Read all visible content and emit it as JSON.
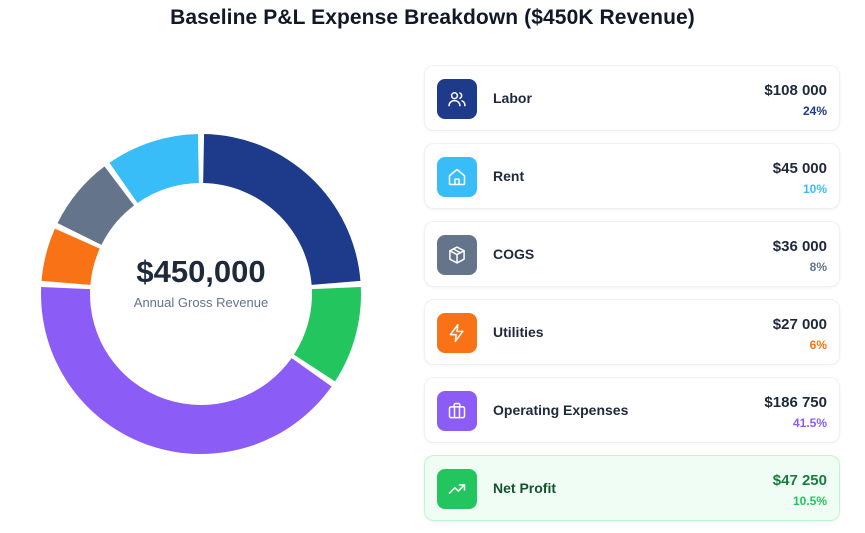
{
  "title": "Baseline P&L Expense Breakdown ($450K Revenue)",
  "center": {
    "value": "$450,000",
    "label": "Annual Gross Revenue"
  },
  "chart_data": {
    "type": "pie",
    "variant": "donut",
    "title": "Baseline P&L Expense Breakdown ($450K Revenue)",
    "total": 450000,
    "categories": [
      "Labor",
      "Net Profit",
      "Operating Expenses",
      "Utilities",
      "COGS",
      "Rent"
    ],
    "values": [
      108000,
      47250,
      186750,
      27000,
      36000,
      45000
    ],
    "percents": [
      24,
      10.5,
      41.5,
      6,
      8,
      10
    ],
    "colors": [
      "#1e3a8a",
      "#22c55e",
      "#8b5cf6",
      "#f97316",
      "#64748b",
      "#38bdf8"
    ]
  },
  "cards": [
    {
      "label": "Labor",
      "amount": "$108 000",
      "pct": "24%",
      "color": "#1e3a8a",
      "pct_color": "#1e3a8a",
      "icon": "users-icon"
    },
    {
      "label": "Rent",
      "amount": "$45 000",
      "pct": "10%",
      "color": "#38bdf8",
      "pct_color": "#38bdf8",
      "icon": "home-icon"
    },
    {
      "label": "COGS",
      "amount": "$36 000",
      "pct": "8%",
      "color": "#64748b",
      "pct_color": "#64748b",
      "icon": "package-icon"
    },
    {
      "label": "Utilities",
      "amount": "$27 000",
      "pct": "6%",
      "color": "#f97316",
      "pct_color": "#f97316",
      "icon": "zap-icon"
    },
    {
      "label": "Operating Expenses",
      "amount": "$186 750",
      "pct": "41.5%",
      "color": "#8b5cf6",
      "pct_color": "#8b5cf6",
      "icon": "briefcase-icon"
    },
    {
      "label": "Net Profit",
      "amount": "$47 250",
      "pct": "10.5%",
      "color": "#22c55e",
      "pct_color": "#22c55e",
      "icon": "trending-up-icon"
    }
  ]
}
